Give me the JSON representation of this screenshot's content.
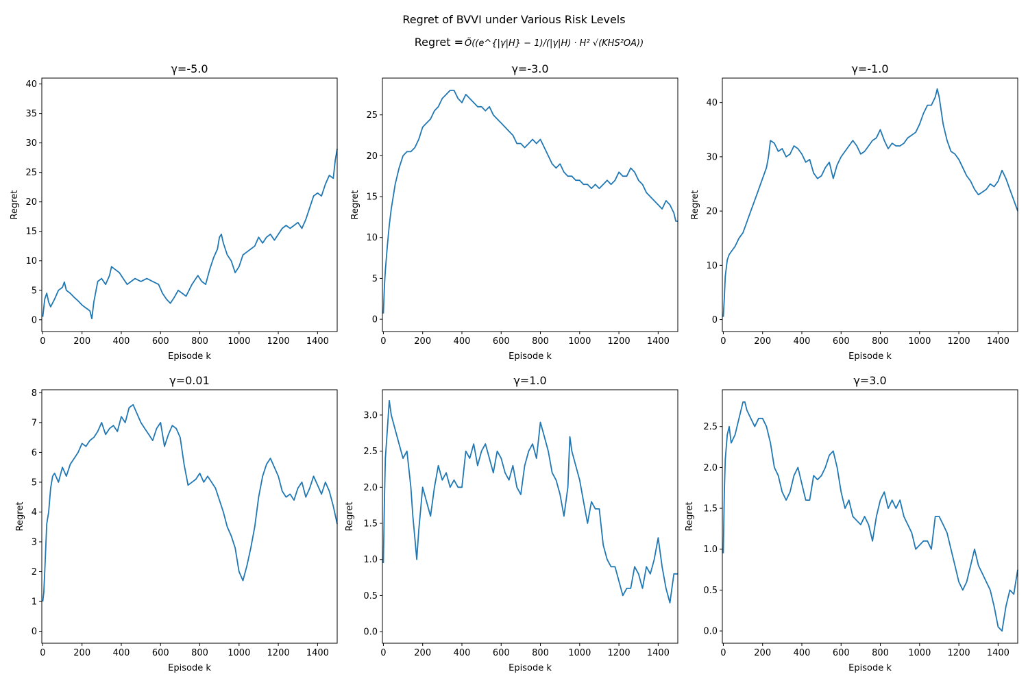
{
  "figure": {
    "suptitle": "Regret of BVVI under Various Risk Levels",
    "subtitle_prefix": "Regret = ",
    "subtitle_formula": "Õ((e^{|γ|H} − 1)/(|γ|H) · H² √(KHS²OA))",
    "line_color": "#1f77b4"
  },
  "chart_data": [
    {
      "type": "line",
      "title": "γ=-5.0",
      "xlabel": "Episode k",
      "ylabel": "Regret",
      "xlim": [
        -5,
        1500
      ],
      "ylim": [
        -2,
        41
      ],
      "xticks": [
        0,
        200,
        400,
        600,
        800,
        1000,
        1200,
        1400
      ],
      "yticks": [
        0,
        5,
        10,
        15,
        20,
        25,
        30,
        35,
        40
      ],
      "ytick_labels": [
        "0",
        "5",
        "10",
        "15",
        "20",
        "25",
        "30",
        "35",
        "40"
      ],
      "x": [
        0,
        10,
        20,
        30,
        40,
        60,
        80,
        100,
        110,
        120,
        140,
        160,
        180,
        200,
        220,
        240,
        250,
        260,
        280,
        300,
        320,
        340,
        350,
        370,
        390,
        410,
        430,
        450,
        470,
        500,
        530,
        560,
        590,
        610,
        630,
        650,
        670,
        690,
        710,
        730,
        760,
        790,
        810,
        830,
        850,
        870,
        890,
        900,
        910,
        920,
        940,
        960,
        980,
        1000,
        1020,
        1040,
        1060,
        1080,
        1100,
        1120,
        1140,
        1160,
        1180,
        1200,
        1220,
        1240,
        1260,
        1280,
        1300,
        1320,
        1340,
        1360,
        1380,
        1400,
        1420,
        1440,
        1460,
        1480,
        1490,
        1500
      ],
      "y": [
        0.5,
        3.5,
        4.5,
        3.0,
        2.2,
        3.5,
        5.0,
        5.5,
        6.4,
        5.0,
        4.5,
        3.8,
        3.2,
        2.5,
        2.0,
        1.5,
        0.2,
        3.0,
        6.5,
        7.0,
        6.0,
        7.5,
        9.0,
        8.5,
        8.0,
        7.0,
        6.0,
        6.5,
        7.0,
        6.5,
        7.0,
        6.5,
        6.0,
        4.5,
        3.5,
        2.8,
        3.8,
        5.0,
        4.5,
        4.0,
        6.0,
        7.5,
        6.5,
        6.0,
        8.5,
        10.5,
        12.0,
        14.0,
        14.5,
        13.0,
        11.0,
        10.0,
        8.0,
        9.0,
        11.0,
        11.5,
        12.0,
        12.5,
        14.0,
        13.0,
        14.0,
        14.5,
        13.5,
        14.5,
        15.5,
        16.0,
        15.5,
        16.0,
        16.5,
        15.5,
        17.0,
        19.0,
        21.0,
        21.5,
        21.0,
        23.0,
        24.5,
        24.0,
        27.0,
        29.0
      ]
    },
    {
      "type": "line",
      "title": "γ=-3.0",
      "xlabel": "Episode k",
      "ylabel": "Regret",
      "xlim": [
        -5,
        1500
      ],
      "ylim": [
        -1.5,
        29.5
      ],
      "xticks": [
        0,
        200,
        400,
        600,
        800,
        1000,
        1200,
        1400
      ],
      "yticks": [
        0,
        5,
        10,
        15,
        20,
        25
      ],
      "ytick_labels": [
        "0",
        "5",
        "10",
        "15",
        "20",
        "25"
      ],
      "x": [
        0,
        5,
        10,
        20,
        30,
        40,
        60,
        80,
        100,
        120,
        140,
        160,
        180,
        200,
        220,
        240,
        260,
        280,
        300,
        320,
        340,
        360,
        380,
        400,
        420,
        440,
        460,
        480,
        500,
        520,
        540,
        560,
        580,
        600,
        620,
        640,
        660,
        680,
        700,
        720,
        740,
        760,
        780,
        800,
        820,
        840,
        860,
        880,
        900,
        920,
        940,
        960,
        980,
        1000,
        1020,
        1040,
        1060,
        1080,
        1100,
        1120,
        1140,
        1160,
        1180,
        1200,
        1220,
        1240,
        1260,
        1280,
        1300,
        1320,
        1340,
        1360,
        1380,
        1400,
        1420,
        1440,
        1460,
        1480,
        1490,
        1500
      ],
      "y": [
        0.7,
        4.0,
        6.0,
        9.0,
        11.5,
        13.5,
        16.5,
        18.5,
        20.0,
        20.5,
        20.5,
        21.0,
        22.0,
        23.5,
        24.0,
        24.5,
        25.5,
        26.0,
        27.0,
        27.5,
        28.0,
        28.0,
        27.0,
        26.5,
        27.5,
        27.0,
        26.5,
        26.0,
        26.0,
        25.5,
        26.0,
        25.0,
        24.5,
        24.0,
        23.5,
        23.0,
        22.5,
        21.5,
        21.5,
        21.0,
        21.5,
        22.0,
        21.5,
        22.0,
        21.0,
        20.0,
        19.0,
        18.5,
        19.0,
        18.0,
        17.5,
        17.5,
        17.0,
        17.0,
        16.5,
        16.5,
        16.0,
        16.5,
        16.0,
        16.5,
        17.0,
        16.5,
        17.0,
        18.0,
        17.5,
        17.5,
        18.5,
        18.0,
        17.0,
        16.5,
        15.5,
        15.0,
        14.5,
        14.0,
        13.5,
        14.5,
        14.0,
        13.0,
        12.0,
        12.0
      ]
    },
    {
      "type": "line",
      "title": "γ=-1.0",
      "xlabel": "Episode k",
      "ylabel": "Regret",
      "xlim": [
        -5,
        1500
      ],
      "ylim": [
        -2.2,
        44.5
      ],
      "xticks": [
        0,
        200,
        400,
        600,
        800,
        1000,
        1200,
        1400
      ],
      "yticks": [
        0,
        10,
        20,
        30,
        40
      ],
      "ytick_labels": [
        "0",
        "10",
        "20",
        "30",
        "40"
      ],
      "x": [
        0,
        5,
        10,
        20,
        30,
        40,
        60,
        80,
        100,
        120,
        140,
        160,
        180,
        200,
        220,
        230,
        240,
        260,
        280,
        300,
        320,
        340,
        360,
        380,
        400,
        420,
        440,
        460,
        480,
        500,
        520,
        540,
        560,
        580,
        600,
        620,
        640,
        660,
        680,
        700,
        720,
        740,
        760,
        780,
        800,
        820,
        840,
        860,
        880,
        900,
        920,
        940,
        960,
        980,
        1000,
        1020,
        1040,
        1060,
        1080,
        1090,
        1100,
        1120,
        1140,
        1160,
        1180,
        1200,
        1220,
        1240,
        1260,
        1280,
        1300,
        1320,
        1340,
        1360,
        1380,
        1400,
        1420,
        1440,
        1460,
        1480,
        1500
      ],
      "y": [
        0.5,
        4.0,
        8.0,
        11.0,
        12.0,
        12.5,
        13.5,
        15.0,
        16.0,
        18.0,
        20.0,
        22.0,
        24.0,
        26.0,
        28.0,
        30.0,
        33.0,
        32.5,
        31.0,
        31.5,
        30.0,
        30.5,
        32.0,
        31.5,
        30.5,
        29.0,
        29.5,
        27.0,
        26.0,
        26.5,
        28.0,
        29.0,
        26.0,
        28.5,
        30.0,
        31.0,
        32.0,
        33.0,
        32.0,
        30.5,
        31.0,
        32.0,
        33.0,
        33.5,
        35.0,
        33.0,
        31.5,
        32.5,
        32.0,
        32.0,
        32.5,
        33.5,
        34.0,
        34.5,
        36.0,
        38.0,
        39.5,
        39.5,
        41.0,
        42.5,
        41.0,
        36.0,
        33.0,
        31.0,
        30.5,
        29.5,
        28.0,
        26.5,
        25.5,
        24.0,
        23.0,
        23.5,
        24.0,
        25.0,
        24.5,
        25.5,
        27.5,
        26.0,
        24.0,
        22.0,
        20.0
      ]
    },
    {
      "type": "line",
      "title": "γ=0.01",
      "xlabel": "Episode k",
      "ylabel": "Regret",
      "xlim": [
        -5,
        1500
      ],
      "ylim": [
        -0.4,
        8.1
      ],
      "xticks": [
        0,
        200,
        400,
        600,
        800,
        1000,
        1200,
        1400
      ],
      "yticks": [
        0,
        1,
        2,
        3,
        4,
        5,
        6,
        7,
        8
      ],
      "ytick_labels": [
        "0",
        "1",
        "2",
        "3",
        "4",
        "5",
        "6",
        "7",
        "8"
      ],
      "x": [
        0,
        5,
        10,
        20,
        30,
        40,
        50,
        60,
        80,
        100,
        120,
        140,
        160,
        180,
        200,
        220,
        240,
        260,
        280,
        300,
        320,
        340,
        360,
        380,
        400,
        420,
        440,
        460,
        480,
        500,
        520,
        540,
        560,
        580,
        600,
        620,
        640,
        660,
        680,
        700,
        720,
        740,
        760,
        780,
        800,
        820,
        840,
        860,
        880,
        900,
        920,
        940,
        960,
        980,
        1000,
        1020,
        1040,
        1060,
        1080,
        1100,
        1120,
        1140,
        1160,
        1180,
        1200,
        1220,
        1240,
        1260,
        1280,
        1300,
        1320,
        1340,
        1360,
        1380,
        1400,
        1420,
        1440,
        1460,
        1480,
        1500
      ],
      "y": [
        1.0,
        1.3,
        2.0,
        3.6,
        4.0,
        4.8,
        5.2,
        5.3,
        5.0,
        5.5,
        5.2,
        5.6,
        5.8,
        6.0,
        6.3,
        6.2,
        6.4,
        6.5,
        6.7,
        7.0,
        6.6,
        6.8,
        6.9,
        6.7,
        7.2,
        7.0,
        7.5,
        7.6,
        7.3,
        7.0,
        6.8,
        6.6,
        6.4,
        6.8,
        7.0,
        6.2,
        6.6,
        6.9,
        6.8,
        6.5,
        5.6,
        4.9,
        5.0,
        5.1,
        5.3,
        5.0,
        5.2,
        5.0,
        4.8,
        4.4,
        4.0,
        3.5,
        3.2,
        2.8,
        2.0,
        1.7,
        2.2,
        2.8,
        3.5,
        4.5,
        5.2,
        5.6,
        5.8,
        5.5,
        5.2,
        4.7,
        4.5,
        4.6,
        4.4,
        4.8,
        5.0,
        4.5,
        4.8,
        5.2,
        4.9,
        4.6,
        5.0,
        4.7,
        4.2,
        3.6
      ]
    },
    {
      "type": "line",
      "title": "γ=1.0",
      "xlabel": "Episode k",
      "ylabel": "Regret",
      "xlim": [
        -5,
        1500
      ],
      "ylim": [
        -0.16,
        3.35
      ],
      "xticks": [
        0,
        200,
        400,
        600,
        800,
        1000,
        1200,
        1400
      ],
      "yticks": [
        0,
        0.5,
        1,
        1.5,
        2,
        2.5,
        3
      ],
      "ytick_labels": [
        "0.0",
        "0.5",
        "1.0",
        "1.5",
        "2.0",
        "2.5",
        "3.0"
      ],
      "x": [
        0,
        5,
        10,
        20,
        30,
        40,
        60,
        80,
        100,
        120,
        140,
        150,
        160,
        170,
        180,
        200,
        220,
        240,
        260,
        280,
        300,
        320,
        340,
        360,
        380,
        400,
        420,
        440,
        460,
        480,
        500,
        520,
        540,
        560,
        580,
        600,
        620,
        640,
        660,
        680,
        700,
        720,
        740,
        760,
        780,
        800,
        820,
        840,
        860,
        880,
        900,
        920,
        940,
        950,
        960,
        980,
        1000,
        1020,
        1040,
        1060,
        1080,
        1100,
        1120,
        1140,
        1160,
        1180,
        1200,
        1220,
        1240,
        1260,
        1280,
        1300,
        1320,
        1340,
        1360,
        1380,
        1400,
        1420,
        1440,
        1460,
        1480,
        1500
      ],
      "y": [
        0.95,
        1.8,
        2.4,
        2.8,
        3.2,
        3.0,
        2.8,
        2.6,
        2.4,
        2.5,
        2.0,
        1.6,
        1.3,
        1.0,
        1.4,
        2.0,
        1.8,
        1.6,
        2.0,
        2.3,
        2.1,
        2.2,
        2.0,
        2.1,
        2.0,
        2.0,
        2.5,
        2.4,
        2.6,
        2.3,
        2.5,
        2.6,
        2.4,
        2.2,
        2.5,
        2.4,
        2.2,
        2.1,
        2.3,
        2.0,
        1.9,
        2.3,
        2.5,
        2.6,
        2.4,
        2.9,
        2.7,
        2.5,
        2.2,
        2.1,
        1.9,
        1.6,
        2.0,
        2.7,
        2.5,
        2.3,
        2.1,
        1.8,
        1.5,
        1.8,
        1.7,
        1.7,
        1.2,
        1.0,
        0.9,
        0.9,
        0.7,
        0.5,
        0.6,
        0.6,
        0.9,
        0.8,
        0.6,
        0.9,
        0.8,
        1.0,
        1.3,
        0.9,
        0.6,
        0.4,
        0.8,
        0.8
      ]
    },
    {
      "type": "line",
      "title": "γ=3.0",
      "xlabel": "Episode k",
      "ylabel": "Regret",
      "xlim": [
        -5,
        1500
      ],
      "ylim": [
        -0.15,
        2.95
      ],
      "xticks": [
        0,
        200,
        400,
        600,
        800,
        1000,
        1200,
        1400
      ],
      "yticks": [
        0,
        0.5,
        1,
        1.5,
        2,
        2.5
      ],
      "ytick_labels": [
        "0.0",
        "0.5",
        "1.0",
        "1.5",
        "2.0",
        "2.5"
      ],
      "x": [
        0,
        5,
        10,
        20,
        30,
        40,
        60,
        80,
        100,
        110,
        120,
        140,
        160,
        180,
        200,
        220,
        240,
        260,
        280,
        300,
        320,
        340,
        360,
        380,
        400,
        420,
        440,
        460,
        480,
        500,
        520,
        540,
        560,
        580,
        600,
        620,
        640,
        660,
        680,
        700,
        720,
        740,
        760,
        780,
        800,
        820,
        840,
        860,
        880,
        900,
        920,
        940,
        960,
        980,
        1000,
        1020,
        1040,
        1060,
        1080,
        1100,
        1120,
        1140,
        1160,
        1180,
        1200,
        1220,
        1240,
        1260,
        1280,
        1300,
        1320,
        1340,
        1360,
        1380,
        1400,
        1420,
        1440,
        1460,
        1480,
        1490,
        1500
      ],
      "y": [
        0.95,
        1.7,
        2.1,
        2.4,
        2.5,
        2.3,
        2.4,
        2.6,
        2.8,
        2.8,
        2.7,
        2.6,
        2.5,
        2.6,
        2.6,
        2.5,
        2.3,
        2.0,
        1.9,
        1.7,
        1.6,
        1.7,
        1.9,
        2.0,
        1.8,
        1.6,
        1.6,
        1.9,
        1.85,
        1.9,
        2.0,
        2.15,
        2.2,
        2.0,
        1.7,
        1.5,
        1.6,
        1.4,
        1.35,
        1.3,
        1.4,
        1.3,
        1.1,
        1.4,
        1.6,
        1.7,
        1.5,
        1.6,
        1.5,
        1.6,
        1.4,
        1.3,
        1.2,
        1.0,
        1.05,
        1.1,
        1.1,
        1.0,
        1.4,
        1.4,
        1.3,
        1.2,
        1.0,
        0.8,
        0.6,
        0.5,
        0.6,
        0.8,
        1.0,
        0.8,
        0.7,
        0.6,
        0.5,
        0.3,
        0.05,
        0.0,
        0.3,
        0.5,
        0.45,
        0.6,
        0.75
      ]
    }
  ]
}
